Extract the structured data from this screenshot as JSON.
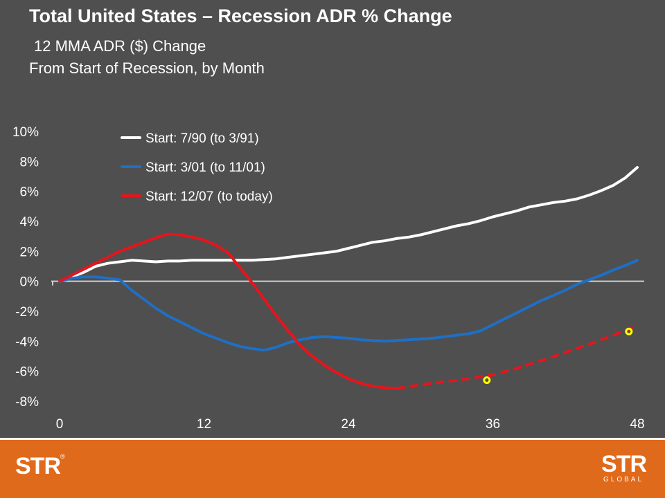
{
  "chart_data": {
    "type": "line",
    "title": "Total United States – Recession ADR % Change",
    "subtitle_line1": "12 MMA ADR ($) Change",
    "subtitle_line2": "From Start of Recession, by Month",
    "xlabel": "",
    "ylabel": "",
    "xlim": [
      0,
      48
    ],
    "ylim": [
      -8,
      10
    ],
    "x_ticks": [
      0,
      12,
      24,
      36,
      48
    ],
    "x_tick_labels": [
      "0",
      "12",
      "24",
      "36",
      "48"
    ],
    "y_ticks": [
      10,
      8,
      6,
      4,
      2,
      0,
      -2,
      -4,
      -6,
      -8
    ],
    "y_tick_labels": [
      "10%",
      "8%",
      "6%",
      "4%",
      "2%",
      "0%",
      "-2%",
      "-4%",
      "-6%",
      "-8%"
    ],
    "legend_position": "top-left",
    "grid": false,
    "series": [
      {
        "name": "Start: 7/90 (to 3/91)",
        "color": "#ffffff",
        "x": [
          0,
          1,
          2,
          3,
          4,
          5,
          6,
          7,
          8,
          9,
          10,
          11,
          12,
          13,
          14,
          15,
          16,
          17,
          18,
          19,
          20,
          21,
          22,
          23,
          24,
          25,
          26,
          27,
          28,
          29,
          30,
          31,
          32,
          33,
          34,
          35,
          36,
          37,
          38,
          39,
          40,
          41,
          42,
          43,
          44,
          45,
          46,
          47,
          48
        ],
        "values": [
          0,
          0.3,
          0.6,
          1.0,
          1.2,
          1.3,
          1.4,
          1.35,
          1.3,
          1.35,
          1.35,
          1.4,
          1.4,
          1.4,
          1.4,
          1.4,
          1.4,
          1.45,
          1.5,
          1.6,
          1.7,
          1.8,
          1.9,
          2.0,
          2.2,
          2.4,
          2.6,
          2.7,
          2.85,
          2.95,
          3.1,
          3.3,
          3.5,
          3.7,
          3.85,
          4.05,
          4.3,
          4.5,
          4.7,
          4.95,
          5.1,
          5.25,
          5.35,
          5.5,
          5.75,
          6.05,
          6.4,
          6.9,
          7.6
        ]
      },
      {
        "name": "Start: 3/01 (to 11/01)",
        "color": "#1f6fc5",
        "x": [
          0,
          1,
          2,
          3,
          4,
          5,
          6,
          7,
          8,
          9,
          10,
          11,
          12,
          13,
          14,
          15,
          16,
          17,
          18,
          19,
          20,
          21,
          22,
          23,
          24,
          25,
          26,
          27,
          28,
          29,
          30,
          31,
          32,
          33,
          34,
          35,
          36,
          37,
          38,
          39,
          40,
          41,
          42,
          43,
          44,
          45,
          46,
          47,
          48
        ],
        "values": [
          0,
          0.2,
          0.3,
          0.3,
          0.2,
          0.1,
          -0.6,
          -1.2,
          -1.8,
          -2.3,
          -2.7,
          -3.1,
          -3.5,
          -3.8,
          -4.1,
          -4.35,
          -4.5,
          -4.6,
          -4.4,
          -4.1,
          -3.9,
          -3.75,
          -3.7,
          -3.75,
          -3.8,
          -3.9,
          -3.95,
          -4.0,
          -3.95,
          -3.9,
          -3.85,
          -3.8,
          -3.7,
          -3.6,
          -3.5,
          -3.3,
          -2.9,
          -2.5,
          -2.1,
          -1.7,
          -1.3,
          -0.95,
          -0.6,
          -0.2,
          0.1,
          0.4,
          0.75,
          1.05,
          1.4
        ]
      },
      {
        "name": "Start: 12/07 (to today)",
        "color": "#e8141b",
        "x": [
          0,
          1,
          2,
          3,
          4,
          5,
          6,
          7,
          8,
          9,
          10,
          11,
          12,
          13,
          14,
          15,
          16,
          17,
          18,
          19,
          20,
          21,
          22,
          23,
          24,
          25,
          26,
          27,
          28
        ],
        "values": [
          0,
          0.4,
          0.8,
          1.2,
          1.6,
          2.0,
          2.3,
          2.6,
          2.9,
          3.15,
          3.1,
          2.95,
          2.75,
          2.4,
          1.9,
          0.9,
          -0.1,
          -1.2,
          -2.3,
          -3.3,
          -4.3,
          -5.0,
          -5.6,
          -6.1,
          -6.5,
          -6.8,
          -7.0,
          -7.1,
          -7.15
        ]
      },
      {
        "name": "",
        "color": "#e8141b",
        "dashed": true,
        "x": [
          28,
          30,
          32,
          34,
          36,
          38,
          40,
          42,
          44,
          46,
          48
        ],
        "values": [
          -7.15,
          -6.9,
          -6.7,
          -6.5,
          -6.25,
          -5.8,
          -5.3,
          -4.75,
          -4.2,
          -3.6,
          -2.95
        ]
      }
    ],
    "markers": [
      {
        "x": 35.5,
        "y": -6.6,
        "color": "#ffff00"
      },
      {
        "x": 47.3,
        "y": -3.35,
        "color": "#ffff00"
      }
    ]
  },
  "footer": {
    "logo_left": "STR",
    "logo_right": "STR",
    "logo_right_sub": "GLOBAL"
  }
}
